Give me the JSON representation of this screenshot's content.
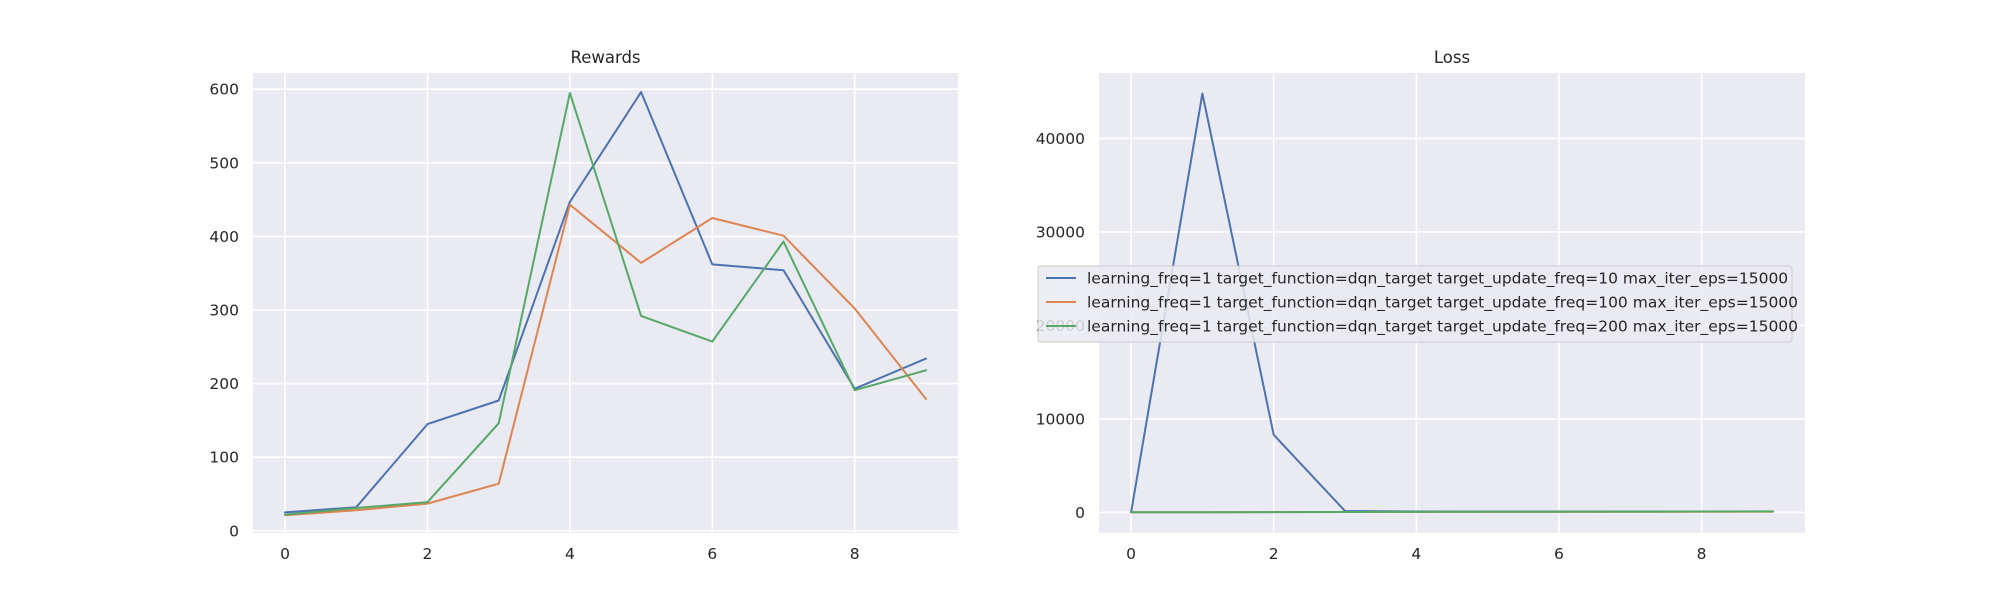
{
  "colors": {
    "plot_background": "#eaeaf2",
    "grid": "#ffffff",
    "series": [
      "#4c72b0",
      "#dd8452",
      "#55a868"
    ]
  },
  "legend": {
    "placement": "center-right",
    "entries": [
      "learning_freq=1 target_function=dqn_target target_update_freq=10 max_iter_eps=15000",
      "learning_freq=1 target_function=dqn_target target_update_freq=100 max_iter_eps=15000",
      "learning_freq=1 target_function=dqn_target target_update_freq=200 max_iter_eps=15000"
    ]
  },
  "chart_data": [
    {
      "type": "line",
      "title": "Rewards",
      "xlabel": "",
      "ylabel": "",
      "grid": true,
      "xlim": [
        -0.45,
        9.45
      ],
      "ylim": [
        -3,
        622
      ],
      "xticks": [
        0,
        2,
        4,
        6,
        8
      ],
      "yticks": [
        0,
        100,
        200,
        300,
        400,
        500,
        600
      ],
      "x": [
        0,
        1,
        2,
        3,
        4,
        5,
        6,
        7,
        8,
        9
      ],
      "series": [
        {
          "name": "learning_freq=1 target_function=dqn_target target_update_freq=10 max_iter_eps=15000",
          "values": [
            25,
            32,
            145,
            177,
            447,
            596,
            362,
            354,
            193,
            234
          ]
        },
        {
          "name": "learning_freq=1 target_function=dqn_target target_update_freq=100 max_iter_eps=15000",
          "values": [
            21,
            28,
            37,
            64,
            443,
            364,
            425,
            401,
            302,
            179
          ]
        },
        {
          "name": "learning_freq=1 target_function=dqn_target target_update_freq=200 max_iter_eps=15000",
          "values": [
            22,
            31,
            39,
            146,
            595,
            292,
            257,
            393,
            191,
            218
          ]
        }
      ]
    },
    {
      "type": "line",
      "title": "Loss",
      "xlabel": "",
      "ylabel": "",
      "grid": true,
      "xlim": [
        -0.45,
        9.45
      ],
      "ylim": [
        -2200,
        47000
      ],
      "xticks": [
        0,
        2,
        4,
        6,
        8
      ],
      "yticks": [
        0,
        10000,
        20000,
        30000,
        40000
      ],
      "x": [
        0,
        1,
        2,
        3,
        4,
        5,
        6,
        7,
        8,
        9
      ],
      "series": [
        {
          "name": "learning_freq=1 target_function=dqn_target target_update_freq=10 max_iter_eps=15000",
          "values": [
            0,
            44800,
            8300,
            150,
            100,
            100,
            100,
            100,
            100,
            100
          ]
        },
        {
          "name": "learning_freq=1 target_function=dqn_target target_update_freq=100 max_iter_eps=15000",
          "values": [
            20,
            30,
            40,
            50,
            50,
            60,
            60,
            60,
            70,
            70
          ]
        },
        {
          "name": "learning_freq=1 target_function=dqn_target target_update_freq=200 max_iter_eps=15000",
          "values": [
            20,
            30,
            40,
            50,
            60,
            70,
            80,
            90,
            100,
            110
          ]
        }
      ]
    }
  ]
}
